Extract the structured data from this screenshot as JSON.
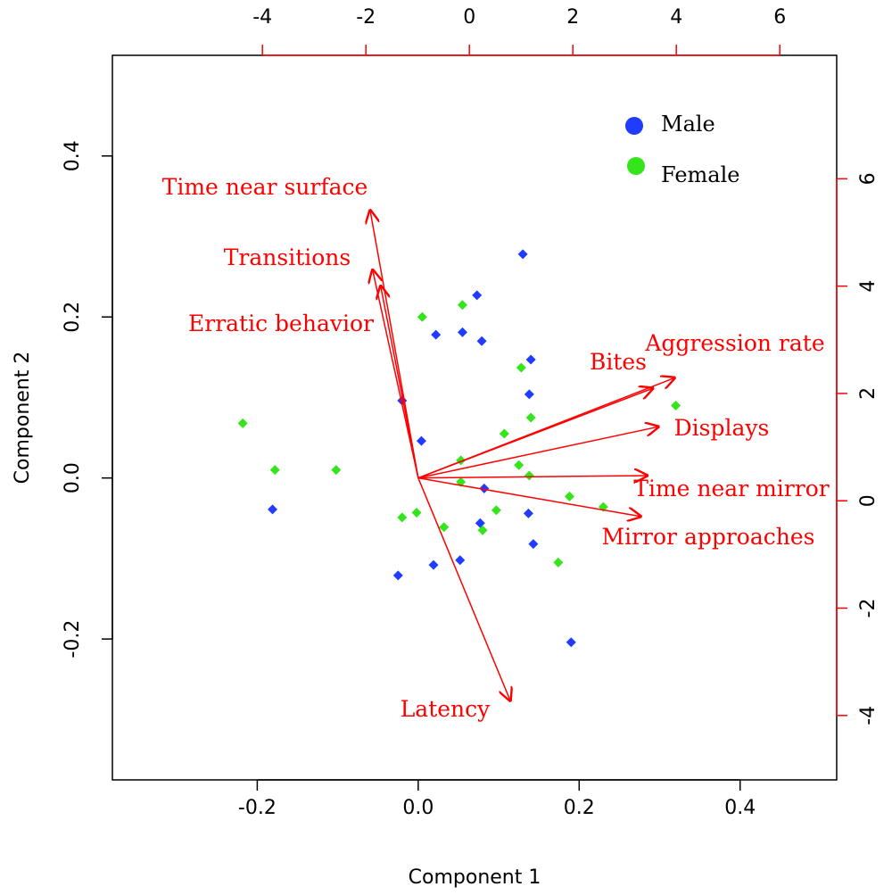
{
  "chart_data": {
    "type": "scatter",
    "subtype": "pca-biplot",
    "xlabel": "Component 1",
    "ylabel": "Component 2",
    "xlim": [
      -0.38,
      0.52
    ],
    "ylim": [
      -0.375,
      0.525
    ],
    "x_ticks": [
      "-0.2",
      "0.0",
      "0.2",
      "0.4"
    ],
    "x_tick_values": [
      -0.2,
      0.0,
      0.2,
      0.4
    ],
    "y_ticks": [
      "-0.2",
      "0.0",
      "0.2",
      "0.4"
    ],
    "y_tick_values": [
      -0.2,
      0.0,
      0.2,
      0.4
    ],
    "secondary_axes": {
      "color": "#ff0000",
      "top_ticks": [
        "-4",
        "-2",
        "0",
        "2",
        "4",
        "6"
      ],
      "top_tick_values": [
        -4,
        -2,
        0,
        2,
        4,
        6
      ],
      "right_ticks": [
        "-4",
        "-2",
        "0",
        "2",
        "4",
        "6"
      ],
      "right_tick_values": [
        -4,
        -2,
        0,
        2,
        4,
        6
      ],
      "top_lim": [
        -6.9,
        7.1
      ],
      "right_lim": [
        -5.2,
        8.3
      ]
    },
    "legend": {
      "position": "top-right",
      "entries": [
        {
          "label": "Male",
          "color": "#1f3cff"
        },
        {
          "label": "Female",
          "color": "#33e51a"
        }
      ]
    },
    "series": [
      {
        "name": "Male",
        "color": "#1f3cff",
        "points": [
          {
            "x": 0.13,
            "y": 0.278
          },
          {
            "x": 0.073,
            "y": 0.227
          },
          {
            "x": 0.022,
            "y": 0.178
          },
          {
            "x": 0.055,
            "y": 0.181
          },
          {
            "x": 0.079,
            "y": 0.17
          },
          {
            "x": 0.14,
            "y": 0.147
          },
          {
            "x": 0.138,
            "y": 0.104
          },
          {
            "x": -0.02,
            "y": 0.096
          },
          {
            "x": 0.004,
            "y": 0.046
          },
          {
            "x": 0.082,
            "y": -0.013
          },
          {
            "x": 0.137,
            "y": -0.044
          },
          {
            "x": 0.077,
            "y": -0.056
          },
          {
            "x": 0.143,
            "y": -0.082
          },
          {
            "x": 0.052,
            "y": -0.102
          },
          {
            "x": 0.019,
            "y": -0.108
          },
          {
            "x": -0.025,
            "y": -0.121
          },
          {
            "x": 0.19,
            "y": -0.204
          },
          {
            "x": -0.181,
            "y": -0.039
          }
        ]
      },
      {
        "name": "Female",
        "color": "#33e51a",
        "points": [
          {
            "x": 0.055,
            "y": 0.215
          },
          {
            "x": 0.005,
            "y": 0.2
          },
          {
            "x": 0.128,
            "y": 0.137
          },
          {
            "x": 0.32,
            "y": 0.09
          },
          {
            "x": 0.14,
            "y": 0.075
          },
          {
            "x": 0.107,
            "y": 0.055
          },
          {
            "x": 0.053,
            "y": 0.022
          },
          {
            "x": 0.125,
            "y": 0.016
          },
          {
            "x": 0.138,
            "y": 0.003
          },
          {
            "x": 0.053,
            "y": -0.005
          },
          {
            "x": 0.188,
            "y": -0.023
          },
          {
            "x": 0.23,
            "y": -0.036
          },
          {
            "x": 0.097,
            "y": -0.04
          },
          {
            "x": -0.002,
            "y": -0.043
          },
          {
            "x": -0.02,
            "y": -0.049
          },
          {
            "x": 0.032,
            "y": -0.061
          },
          {
            "x": 0.08,
            "y": -0.065
          },
          {
            "x": 0.174,
            "y": -0.105
          },
          {
            "x": -0.218,
            "y": 0.068
          },
          {
            "x": -0.178,
            "y": 0.01
          },
          {
            "x": -0.102,
            "y": 0.01
          }
        ]
      }
    ],
    "loadings": {
      "color": "#ff0000",
      "vectors": [
        {
          "label": "Time near surface",
          "x": -0.06,
          "y": 0.334
        },
        {
          "label": "Transitions",
          "x": -0.057,
          "y": 0.26
        },
        {
          "label": "Erratic behavior",
          "x": -0.047,
          "y": 0.24
        },
        {
          "label": "Bites",
          "x": 0.293,
          "y": 0.112
        },
        {
          "label": "Aggression rate",
          "x": 0.32,
          "y": 0.125
        },
        {
          "label": "Displays",
          "x": 0.3,
          "y": 0.064
        },
        {
          "label": "Time near mirror",
          "x": 0.286,
          "y": 0.003
        },
        {
          "label": "Mirror approaches",
          "x": 0.278,
          "y": -0.048
        },
        {
          "label": "Latency",
          "x": 0.115,
          "y": -0.278
        }
      ]
    }
  }
}
